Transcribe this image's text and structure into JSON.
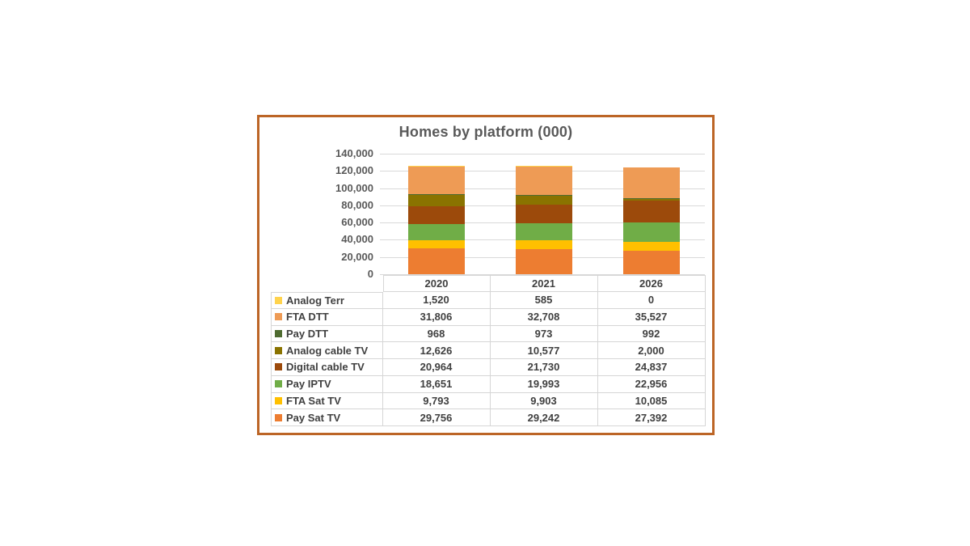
{
  "panel": {
    "border_color": "#bc6526",
    "background": "#ffffff"
  },
  "chart_data": {
    "type": "bar",
    "stacked": true,
    "title": "Homes by platform (000)",
    "categories": [
      "2020",
      "2021",
      "2026"
    ],
    "series": [
      {
        "name": "Analog Terr",
        "color": "#ffd34d",
        "values": [
          1520,
          585,
          0
        ]
      },
      {
        "name": "FTA DTT",
        "color": "#ee9b55",
        "values": [
          31806,
          32708,
          35527
        ]
      },
      {
        "name": "Pay DTT",
        "color": "#4e6b30",
        "values": [
          968,
          973,
          992
        ]
      },
      {
        "name": "Analog cable TV",
        "color": "#8a7300",
        "values": [
          12626,
          10577,
          2000
        ]
      },
      {
        "name": "Digital cable TV",
        "color": "#9c4a0b",
        "values": [
          20964,
          21730,
          24837
        ]
      },
      {
        "name": "Pay IPTV",
        "color": "#70ad47",
        "values": [
          18651,
          19993,
          22956
        ]
      },
      {
        "name": "FTA Sat TV",
        "color": "#ffc000",
        "values": [
          9793,
          9903,
          10085
        ]
      },
      {
        "name": "Pay Sat TV",
        "color": "#ed7d31",
        "values": [
          29756,
          29242,
          27392
        ]
      }
    ],
    "stack_order_bottom_to_top": [
      "Pay Sat TV",
      "FTA Sat TV",
      "Pay IPTV",
      "Digital cable TV",
      "Analog cable TV",
      "Pay DTT",
      "FTA DTT",
      "Analog Terr"
    ],
    "y_axis": {
      "min": 0,
      "max": 140000,
      "tick_interval": 20000,
      "tick_labels": [
        "0",
        "20,000",
        "40,000",
        "60,000",
        "80,000",
        "100,000",
        "120,000",
        "140,000"
      ]
    },
    "grid": true,
    "legend_position": "data-table-left-column",
    "data_table_shown": true,
    "text_colors": {
      "title": "#595959",
      "axis": "#595959",
      "table": "#404040"
    },
    "gridline_color": "#d9d9d9",
    "table_border_color": "#d6d6d6"
  }
}
